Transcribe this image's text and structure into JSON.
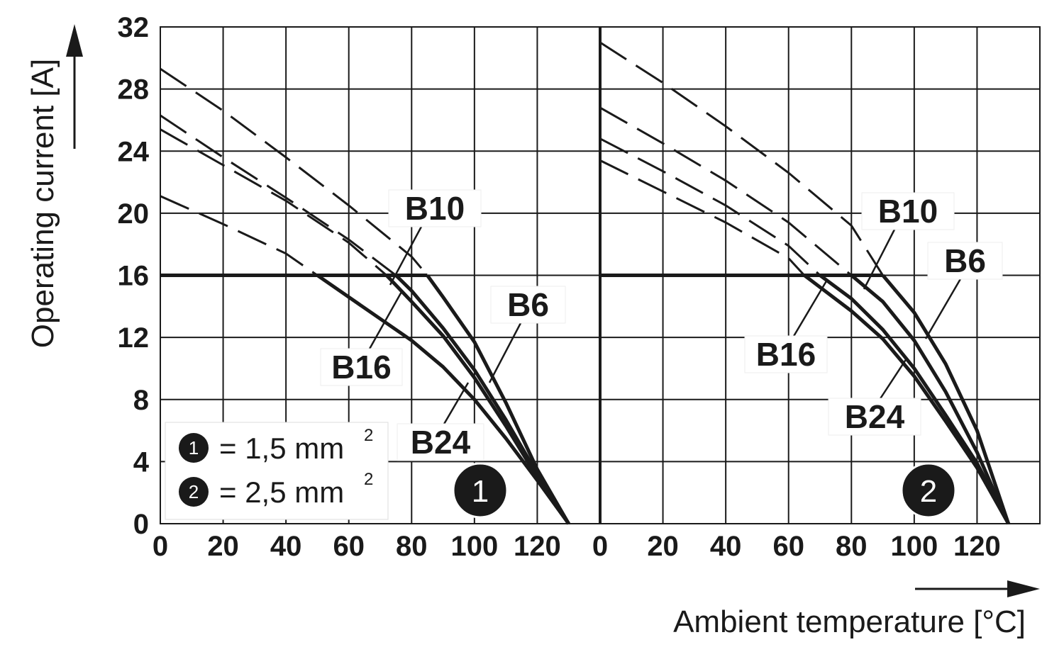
{
  "chart_data": {
    "type": "line",
    "xlabel": "Ambient temperature [°C]",
    "ylabel": "Operating current [A]",
    "ylim": [
      0,
      32
    ],
    "y_ticks": [
      "0",
      "4",
      "8",
      "12",
      "16",
      "20",
      "24",
      "28",
      "32"
    ],
    "x_ticks": [
      "0",
      "20",
      "40",
      "60",
      "80",
      "100",
      "120"
    ],
    "grid": true,
    "legend": {
      "placement": "bottom-left",
      "entries": [
        {
          "badge": "1",
          "text": "= 1,5 mm",
          "sup": "2"
        },
        {
          "badge": "2",
          "text": "= 2,5 mm",
          "sup": "2"
        }
      ]
    },
    "panels": [
      {
        "badge": "1",
        "xlim": [
          0,
          140
        ],
        "limit_line": {
          "y": 16
        },
        "series": [
          {
            "name": "B6",
            "values": [
              [
                0,
                29.3
              ],
              [
                20,
                26.6
              ],
              [
                40,
                23.6
              ],
              [
                60,
                20.5
              ],
              [
                80,
                17.2
              ],
              [
                85,
                16
              ],
              [
                90,
                14.6
              ],
              [
                100,
                11.7
              ],
              [
                110,
                7.8
              ],
              [
                120,
                3.5
              ],
              [
                130,
                0
              ]
            ]
          },
          {
            "name": "B10",
            "values": [
              [
                0,
                26.3
              ],
              [
                20,
                23.6
              ],
              [
                40,
                21.0
              ],
              [
                60,
                18.3
              ],
              [
                75,
                16
              ],
              [
                80,
                15.0
              ],
              [
                90,
                12.6
              ],
              [
                100,
                9.9
              ],
              [
                110,
                6.7
              ],
              [
                120,
                3.2
              ],
              [
                130,
                0
              ]
            ]
          },
          {
            "name": "B16",
            "values": [
              [
                0,
                25.4
              ],
              [
                20,
                23.1
              ],
              [
                40,
                20.8
              ],
              [
                60,
                18.1
              ],
              [
                72,
                16
              ],
              [
                80,
                14.3
              ],
              [
                90,
                12.1
              ],
              [
                100,
                9.4
              ],
              [
                110,
                6.3
              ],
              [
                120,
                3.0
              ],
              [
                130,
                0
              ]
            ]
          },
          {
            "name": "B24",
            "values": [
              [
                0,
                21.1
              ],
              [
                20,
                19.3
              ],
              [
                40,
                17.4
              ],
              [
                50,
                16
              ],
              [
                60,
                14.6
              ],
              [
                80,
                11.8
              ],
              [
                90,
                10.1
              ],
              [
                100,
                8.0
              ],
              [
                110,
                5.5
              ],
              [
                120,
                2.8
              ],
              [
                130,
                0
              ]
            ]
          }
        ],
        "labels": [
          "B10",
          "B16",
          "B6",
          "B24"
        ]
      },
      {
        "badge": "2",
        "xlim": [
          0,
          140
        ],
        "limit_line": {
          "y": 16
        },
        "series": [
          {
            "name": "B6",
            "values": [
              [
                0,
                31.0
              ],
              [
                20,
                28.4
              ],
              [
                40,
                25.6
              ],
              [
                60,
                22.6
              ],
              [
                80,
                19.2
              ],
              [
                90,
                16
              ],
              [
                100,
                13.6
              ],
              [
                110,
                10.3
              ],
              [
                120,
                6.0
              ],
              [
                130,
                0
              ]
            ]
          },
          {
            "name": "B10",
            "values": [
              [
                0,
                26.8
              ],
              [
                20,
                24.5
              ],
              [
                40,
                22.1
              ],
              [
                60,
                19.4
              ],
              [
                80,
                16
              ],
              [
                90,
                14.3
              ],
              [
                100,
                11.8
              ],
              [
                110,
                8.5
              ],
              [
                120,
                4.6
              ],
              [
                130,
                0
              ]
            ]
          },
          {
            "name": "B16",
            "values": [
              [
                0,
                24.8
              ],
              [
                20,
                22.7
              ],
              [
                40,
                20.5
              ],
              [
                60,
                17.9
              ],
              [
                70,
                16
              ],
              [
                80,
                14.5
              ],
              [
                90,
                12.5
              ],
              [
                100,
                10.0
              ],
              [
                110,
                7.0
              ],
              [
                120,
                3.9
              ],
              [
                130,
                0
              ]
            ]
          },
          {
            "name": "B24",
            "values": [
              [
                0,
                23.4
              ],
              [
                20,
                21.4
              ],
              [
                40,
                19.4
              ],
              [
                60,
                17.1
              ],
              [
                65,
                16
              ],
              [
                80,
                13.7
              ],
              [
                90,
                11.9
              ],
              [
                100,
                9.5
              ],
              [
                110,
                6.6
              ],
              [
                120,
                3.6
              ],
              [
                130,
                0
              ]
            ]
          }
        ],
        "labels": [
          "B10",
          "B6",
          "B16",
          "B24"
        ]
      }
    ]
  }
}
